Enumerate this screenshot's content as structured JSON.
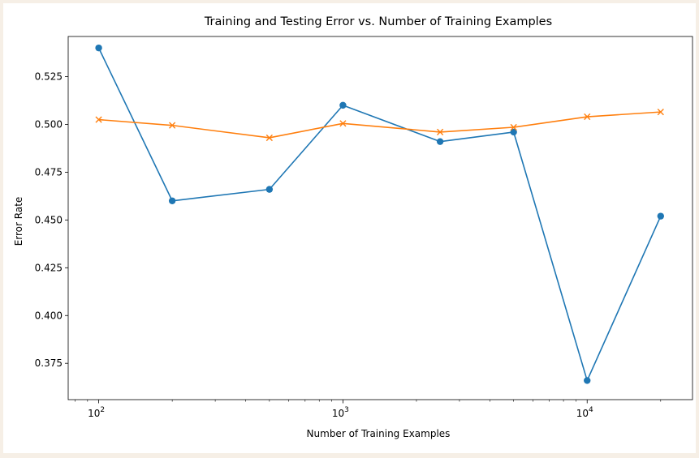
{
  "chart_data": {
    "type": "line",
    "title": "Training and Testing Error vs. Number of Training Examples",
    "xlabel": "Number of Training Examples",
    "ylabel": "Error Rate",
    "xscale": "log",
    "xlim": [
      75,
      27000
    ],
    "ylim": [
      0.356,
      0.546
    ],
    "x": [
      100,
      200,
      500,
      1000,
      2500,
      5000,
      10000,
      20000
    ],
    "x_ticks": [
      {
        "value": 100,
        "base": "10",
        "exp": "2"
      },
      {
        "value": 1000,
        "base": "10",
        "exp": "3"
      },
      {
        "value": 10000,
        "base": "10",
        "exp": "4"
      }
    ],
    "y_ticks": [
      0.375,
      0.4,
      0.425,
      0.45,
      0.475,
      0.5,
      0.525
    ],
    "y_tick_labels": [
      "0.375",
      "0.400",
      "0.425",
      "0.450",
      "0.475",
      "0.500",
      "0.525"
    ],
    "grid": false,
    "legend": "none",
    "series": [
      {
        "marker": "circle",
        "color": "#1f77b4",
        "values": [
          0.54,
          0.46,
          0.466,
          0.51,
          0.491,
          0.496,
          0.366,
          0.452
        ]
      },
      {
        "marker": "x",
        "color": "#ff7f0e",
        "values": [
          0.5025,
          0.4995,
          0.493,
          0.5005,
          0.496,
          0.4985,
          0.504,
          0.5065
        ]
      }
    ]
  }
}
